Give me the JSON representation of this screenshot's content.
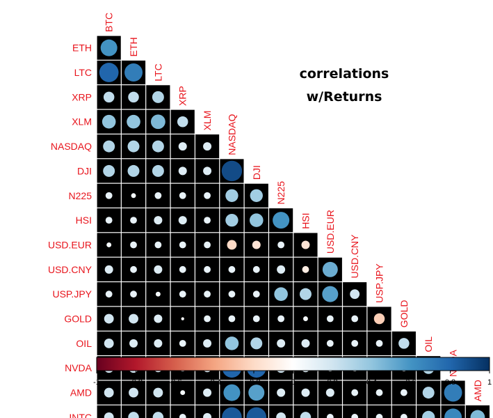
{
  "chart_data": {
    "type": "heatmap",
    "title_lines": [
      "correlations",
      "w/Returns"
    ],
    "variables": [
      "BTC",
      "ETH",
      "LTC",
      "XRP",
      "XLM",
      "NASDAQ",
      "DJI",
      "N225",
      "HSI",
      "USD.EUR",
      "USD.CNY",
      "USP.JPY",
      "GOLD",
      "OIL",
      "NVDA",
      "AMD",
      "INTC"
    ],
    "row_labels": [
      "ETH",
      "LTC",
      "XRP",
      "XLM",
      "NASDAQ",
      "DJI",
      "N225",
      "HSI",
      "USD.EUR",
      "USD.CNY",
      "USP.JPY",
      "GOLD",
      "OIL",
      "NVDA",
      "AMD",
      "INTC"
    ],
    "col_labels": [
      "BTC",
      "ETH",
      "LTC",
      "XRP",
      "XLM",
      "NASDAQ",
      "DJI",
      "N225",
      "HSI",
      "USD.EUR",
      "USD.CNY",
      "USP.JPY",
      "GOLD",
      "OIL",
      "NVDA",
      "AMD"
    ],
    "matrix_lower": [
      [
        0.6
      ],
      [
        0.8,
        0.7
      ],
      [
        0.25,
        0.25,
        0.3
      ],
      [
        0.4,
        0.4,
        0.45,
        0.25
      ],
      [
        0.3,
        0.3,
        0.3,
        0.15,
        0.15
      ],
      [
        0.3,
        0.3,
        0.3,
        0.15,
        0.15,
        0.9
      ],
      [
        0.1,
        0.05,
        0.1,
        0.1,
        0.1,
        0.35,
        0.35
      ],
      [
        0.1,
        0.1,
        0.15,
        0.15,
        0.1,
        0.35,
        0.4,
        0.6
      ],
      [
        0.05,
        0.1,
        0.1,
        0.1,
        0.1,
        -0.2,
        -0.15,
        0.1,
        -0.15
      ],
      [
        0.15,
        0.1,
        0.15,
        0.1,
        0.1,
        0.1,
        0.1,
        0.15,
        -0.1,
        0.5
      ],
      [
        0.1,
        0.1,
        0.05,
        0.1,
        0.1,
        0.1,
        0.1,
        0.4,
        0.3,
        0.55,
        0.2
      ],
      [
        0.2,
        0.2,
        0.15,
        0.02,
        0.1,
        0.1,
        0.1,
        0.1,
        0.05,
        0.1,
        0.1,
        -0.25
      ],
      [
        0.2,
        0.15,
        0.15,
        0.1,
        0.15,
        0.4,
        0.3,
        0.15,
        0.15,
        0.1,
        0.1,
        0.1,
        0.25
      ],
      [
        0.2,
        0.2,
        0.15,
        0.1,
        0.15,
        0.8,
        0.8,
        0.2,
        0.15,
        0.1,
        0.1,
        0.05,
        0.1,
        0.3
      ],
      [
        0.2,
        0.2,
        0.2,
        0.05,
        0.15,
        0.6,
        0.55,
        0.15,
        0.15,
        0.15,
        0.1,
        0.1,
        0.1,
        0.3,
        0.7
      ],
      [
        0.2,
        0.25,
        0.25,
        0.1,
        0.15,
        0.85,
        0.85,
        0.2,
        0.25,
        0.1,
        0.1,
        0.1,
        0.1,
        0.35,
        0.65,
        0.45
      ]
    ],
    "color_scale": {
      "min": -1,
      "max": 1,
      "ticks": [
        -1,
        -0.8,
        -0.6,
        -0.4,
        -0.2,
        0,
        0.2,
        0.4,
        0.6,
        0.8,
        1
      ],
      "stops": [
        "#67001f",
        "#b2182b",
        "#d6604d",
        "#f4a582",
        "#fddbc7",
        "#ffffff",
        "#d1e5f0",
        "#92c5de",
        "#4393c3",
        "#2166ac",
        "#053061"
      ]
    },
    "colors": {
      "cell_background": "#000000",
      "label": "#e8141c"
    }
  }
}
